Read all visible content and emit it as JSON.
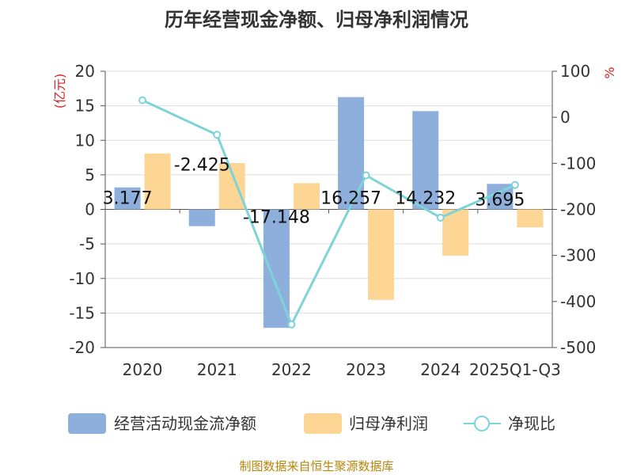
{
  "title": "历年经营现金净额、归母净利润情况",
  "source": "制图数据来自恒生聚源数据库",
  "colors": {
    "bar1": "#8eaedb",
    "bar2": "#fdd595",
    "line": "#7dd4d8",
    "axis": "#555555",
    "grid": "#dddddd",
    "unit": "#e02020",
    "source": "#b8860b"
  },
  "chart_data": {
    "type": "bar+line",
    "categories": [
      "2020",
      "2021",
      "2022",
      "2023",
      "2024",
      "2025Q1-Q3"
    ],
    "left_axis": {
      "unit": "(亿元)",
      "min": -20,
      "max": 20,
      "ticks": [
        20,
        15,
        10,
        5,
        0,
        -5,
        -10,
        -15,
        -20
      ]
    },
    "right_axis": {
      "unit": "%",
      "min": -500,
      "max": 100,
      "ticks": [
        100,
        0,
        -100,
        -200,
        -300,
        -400,
        -500
      ]
    },
    "series": [
      {
        "name": "经营活动现金流净额",
        "type": "bar",
        "axis": "left",
        "values": [
          3.177,
          -2.425,
          -17.148,
          16.257,
          14.232,
          3.695
        ],
        "labels": [
          "3.177",
          "-2.425",
          "-17.148",
          "16.257",
          "14.232",
          "3.695"
        ]
      },
      {
        "name": "归母净利润",
        "type": "bar",
        "axis": "left",
        "values": [
          8.1,
          6.7,
          3.8,
          -13.1,
          -6.7,
          -2.6
        ]
      },
      {
        "name": "净现比",
        "type": "line",
        "axis": "right",
        "values": [
          37,
          -38,
          -450,
          -126,
          -218,
          -147
        ]
      }
    ]
  }
}
